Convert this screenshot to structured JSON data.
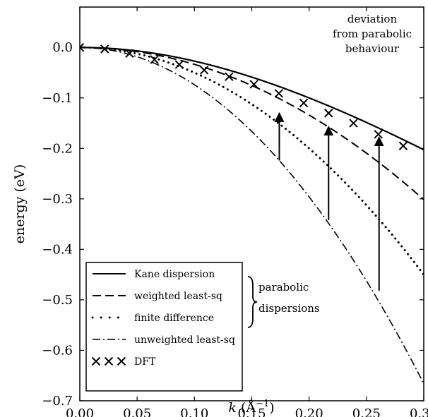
{
  "chart_data": {
    "type": "line",
    "xlabel_prefix": "k",
    "xlabel_units": "(Å",
    "xlabel_exp": "−1",
    "xlabel_close": ")",
    "ylabel": "energy (eV)",
    "xlim": [
      0.0,
      0.3
    ],
    "ylim": [
      -0.7,
      0.08
    ],
    "grid": false,
    "x_ticks": [
      0.0,
      0.05,
      0.1,
      0.15,
      0.2,
      0.25,
      0.3
    ],
    "x_tick_labels": [
      "0.00",
      "0.05",
      "0.10",
      "0.15",
      "0.20",
      "0.25",
      "0.30"
    ],
    "y_ticks": [
      0.0,
      -0.1,
      -0.2,
      -0.3,
      -0.4,
      -0.5,
      -0.6,
      -0.7
    ],
    "y_tick_labels": [
      "0.0",
      "−0.1",
      "−0.2",
      "−0.3",
      "−0.4",
      "−0.5",
      "−0.6",
      "−0.7"
    ],
    "series": [
      {
        "name": "Kane dispersion",
        "style": "solid",
        "model": "kane",
        "a": 2.8,
        "alpha": 1.2
      },
      {
        "name": "weighted least-sq",
        "style": "dashed",
        "model": "parabolic",
        "coef": -3.35
      },
      {
        "name": "finite difference",
        "style": "dotted",
        "model": "parabolic",
        "coef": -5.0
      },
      {
        "name": "unweighted least-sq",
        "style": "dashdot",
        "model": "parabolic",
        "coef": -7.4
      }
    ],
    "dft_series": {
      "name": "DFT",
      "x": [
        0.0,
        0.0217,
        0.0434,
        0.0651,
        0.0868,
        0.1085,
        0.1302,
        0.1519,
        0.1736,
        0.1953,
        0.217,
        0.2387,
        0.2604,
        0.2821
      ],
      "y": [
        0.0,
        -0.003,
        -0.012,
        -0.024,
        -0.034,
        -0.045,
        -0.058,
        -0.073,
        -0.091,
        -0.11,
        -0.13,
        -0.15,
        -0.172,
        -0.195
      ]
    },
    "legend": {
      "placement": "lower-left",
      "entries": [
        "Kane dispersion",
        "weighted least-sq",
        "finite difference",
        "unweighted least-sq",
        "DFT"
      ]
    },
    "annotations": {
      "deviation_lines": [
        "deviation",
        "from parabolic",
        "behaviour"
      ],
      "parabolic_lines": [
        "parabolic",
        "dispersions"
      ],
      "arrows": [
        {
          "x0": 0.174,
          "y0": -0.224,
          "x1": 0.174,
          "y1": -0.13
        },
        {
          "x0": 0.217,
          "y0": -0.342,
          "x1": 0.217,
          "y1": -0.157
        },
        {
          "x0": 0.261,
          "y0": -0.482,
          "x1": 0.261,
          "y1": -0.178
        }
      ]
    }
  }
}
